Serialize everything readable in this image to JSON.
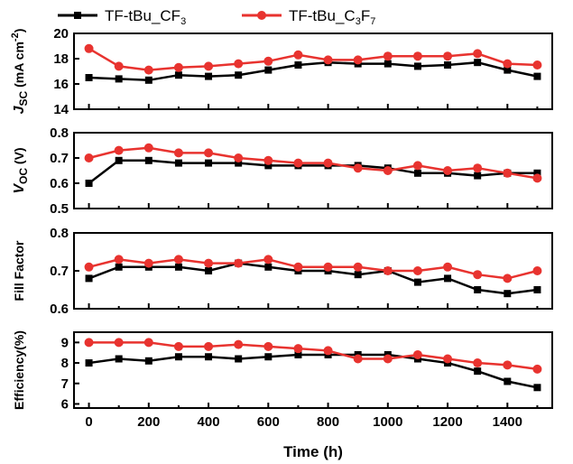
{
  "chart_data": {
    "type": "line",
    "x": [
      0,
      100,
      200,
      300,
      400,
      500,
      600,
      700,
      800,
      900,
      1000,
      1100,
      1200,
      1300,
      1400,
      1500
    ],
    "xlabel": "Time (h)",
    "xlim": [
      -50,
      1550
    ],
    "xticks": [
      "0",
      "200",
      "400",
      "600",
      "800",
      "1000",
      "1200",
      "1400"
    ],
    "legend": {
      "position": "top",
      "entries": [
        {
          "text": "TF-tBu_CF",
          "sub": "3",
          "color": "#000000",
          "marker": "square"
        },
        {
          "text": "TF-tBu_C",
          "sub": "3",
          "mid": "F",
          "sub2": "7",
          "color": "#e8332f",
          "marker": "circle"
        }
      ]
    },
    "panels": [
      {
        "ylabel_main": "J",
        "ylabel_sub": "SC",
        "ylabel_rest": " (mA cm",
        "ylabel_sup": "-2",
        "ylabel_end": ")",
        "ylim": [
          14,
          20
        ],
        "yticks": [
          "14",
          "16",
          "18",
          "20"
        ],
        "series": [
          {
            "name": "TF-tBu_CF3",
            "values": [
              16.5,
              16.4,
              16.3,
              16.7,
              16.6,
              16.7,
              17.1,
              17.5,
              17.7,
              17.6,
              17.6,
              17.4,
              17.5,
              17.7,
              17.1,
              16.6
            ]
          },
          {
            "name": "TF-tBu_C3F7",
            "values": [
              18.8,
              17.4,
              17.1,
              17.3,
              17.4,
              17.6,
              17.8,
              18.3,
              17.9,
              17.9,
              18.2,
              18.2,
              18.2,
              18.4,
              17.6,
              17.5
            ]
          }
        ]
      },
      {
        "ylabel_main": "V",
        "ylabel_sub": "OC",
        "ylabel_rest": " (V)",
        "ylim": [
          0.5,
          0.8
        ],
        "yticks": [
          "0.5",
          "0.6",
          "0.7",
          "0.8"
        ],
        "series": [
          {
            "name": "TF-tBu_CF3",
            "values": [
              0.6,
              0.69,
              0.69,
              0.68,
              0.68,
              0.68,
              0.67,
              0.67,
              0.67,
              0.67,
              0.66,
              0.64,
              0.64,
              0.63,
              0.64,
              0.64
            ]
          },
          {
            "name": "TF-tBu_C3F7",
            "values": [
              0.7,
              0.73,
              0.74,
              0.72,
              0.72,
              0.7,
              0.69,
              0.68,
              0.68,
              0.66,
              0.65,
              0.67,
              0.65,
              0.66,
              0.64,
              0.62
            ]
          }
        ]
      },
      {
        "ylabel_main": "Fill Factor",
        "ylim": [
          0.6,
          0.8
        ],
        "yticks": [
          "0.6",
          "0.7",
          "0.8"
        ],
        "series": [
          {
            "name": "TF-tBu_CF3",
            "values": [
              0.68,
              0.71,
              0.71,
              0.71,
              0.7,
              0.72,
              0.71,
              0.7,
              0.7,
              0.69,
              0.7,
              0.67,
              0.68,
              0.65,
              0.64,
              0.65
            ]
          },
          {
            "name": "TF-tBu_C3F7",
            "values": [
              0.71,
              0.73,
              0.72,
              0.73,
              0.72,
              0.72,
              0.73,
              0.71,
              0.71,
              0.71,
              0.7,
              0.7,
              0.71,
              0.69,
              0.68,
              0.7
            ]
          }
        ]
      },
      {
        "ylabel_main": "Efficiency(%)",
        "ylim": [
          5.8,
          9.5
        ],
        "yticks": [
          "6",
          "7",
          "8",
          "9"
        ],
        "ytick_values": [
          6,
          7,
          8,
          9
        ],
        "series": [
          {
            "name": "TF-tBu_CF3",
            "values": [
              8.0,
              8.2,
              8.1,
              8.3,
              8.3,
              8.2,
              8.3,
              8.4,
              8.4,
              8.4,
              8.4,
              8.2,
              8.0,
              7.6,
              7.1,
              6.8
            ]
          },
          {
            "name": "TF-tBu_C3F7",
            "values": [
              9.0,
              9.0,
              9.0,
              8.8,
              8.8,
              8.9,
              8.8,
              8.7,
              8.6,
              8.2,
              8.2,
              8.4,
              8.2,
              8.0,
              7.9,
              7.7
            ]
          }
        ]
      }
    ]
  }
}
